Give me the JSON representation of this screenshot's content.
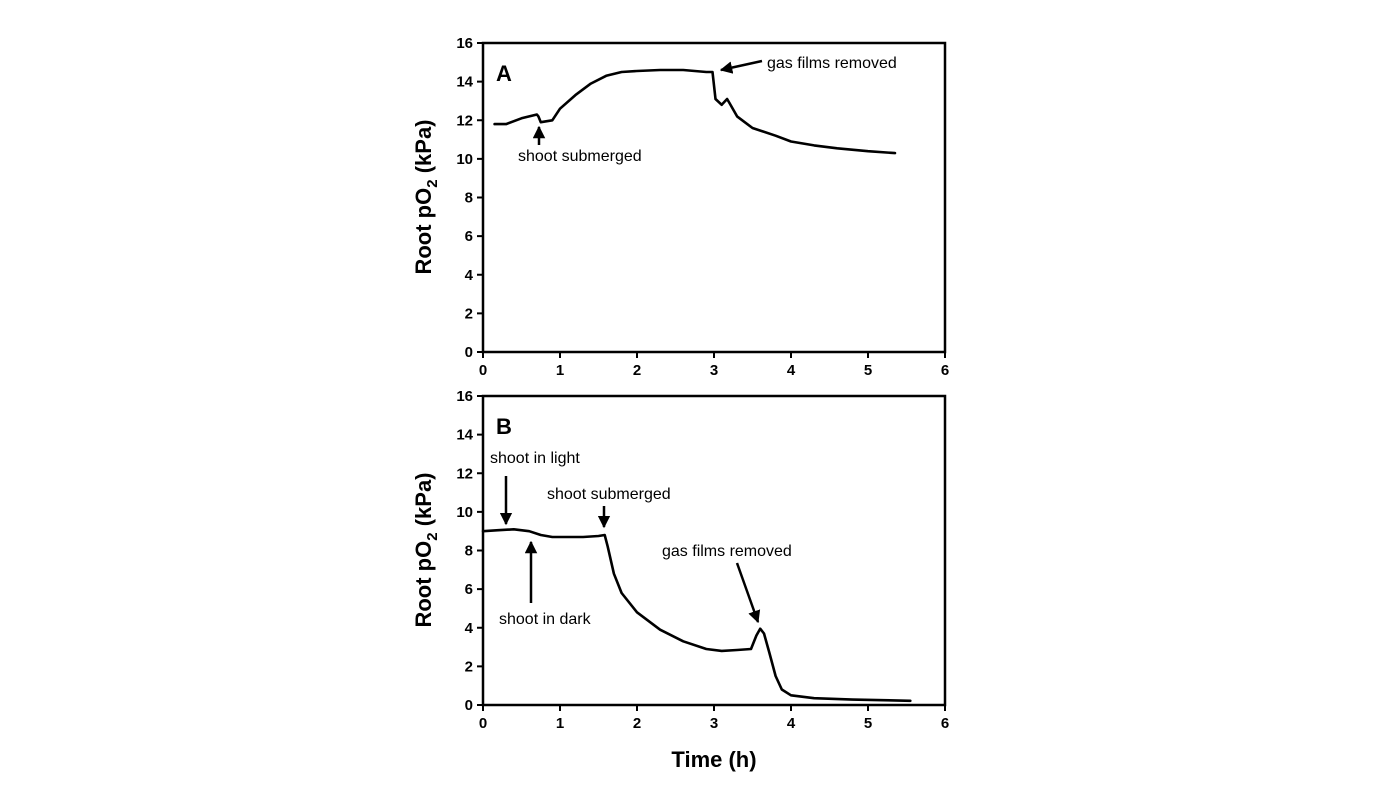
{
  "chart_data": [
    {
      "type": "line",
      "panel_label": "A",
      "xlabel": "",
      "ylabel": "Root pO",
      "ylabel_sub": "2",
      "ylabel_unit": " (kPa)",
      "xlim": [
        0,
        6
      ],
      "ylim": [
        0,
        16
      ],
      "xticks": [
        "0",
        "1",
        "2",
        "3",
        "4",
        "5",
        "6"
      ],
      "yticks": [
        "0",
        "2",
        "4",
        "6",
        "8",
        "10",
        "12",
        "14",
        "16"
      ],
      "grid": false,
      "series": [
        {
          "x": [
            0.15,
            0.3,
            0.5,
            0.7,
            0.72,
            0.75,
            0.9,
            1.0,
            1.2,
            1.4,
            1.6,
            1.8,
            2.0,
            2.3,
            2.6,
            2.9,
            2.98,
            3.02,
            3.1,
            3.17,
            3.2,
            3.3,
            3.5,
            3.8,
            4.0,
            4.3,
            4.6,
            5.0,
            5.35
          ],
          "y": [
            11.8,
            11.8,
            12.1,
            12.3,
            12.2,
            11.9,
            12.0,
            12.6,
            13.3,
            13.9,
            14.3,
            14.5,
            14.55,
            14.6,
            14.6,
            14.5,
            14.5,
            13.1,
            12.8,
            13.1,
            12.9,
            12.2,
            11.6,
            11.2,
            10.9,
            10.7,
            10.55,
            10.4,
            10.3
          ]
        }
      ],
      "annotations": [
        {
          "text": "shoot submerged",
          "x": 0.72,
          "y": 12.0,
          "direction": "up"
        },
        {
          "text": "gas films removed",
          "x": 3.0,
          "y": 14.6,
          "direction": "left"
        }
      ]
    },
    {
      "type": "line",
      "panel_label": "B",
      "xlabel": "Time (h)",
      "ylabel": "Root pO",
      "ylabel_sub": "2",
      "ylabel_unit": " (kPa)",
      "xlim": [
        0,
        6
      ],
      "ylim": [
        0,
        16
      ],
      "xticks": [
        "0",
        "1",
        "2",
        "3",
        "4",
        "5",
        "6"
      ],
      "yticks": [
        "0",
        "2",
        "4",
        "6",
        "8",
        "10",
        "12",
        "14",
        "16"
      ],
      "grid": false,
      "series": [
        {
          "x": [
            0.0,
            0.2,
            0.4,
            0.6,
            0.75,
            0.9,
            1.1,
            1.3,
            1.5,
            1.58,
            1.62,
            1.7,
            1.8,
            2.0,
            2.3,
            2.6,
            2.9,
            3.1,
            3.3,
            3.48,
            3.55,
            3.6,
            3.65,
            3.72,
            3.8,
            3.88,
            4.0,
            4.3,
            4.8,
            5.2,
            5.55
          ],
          "y": [
            9.0,
            9.05,
            9.1,
            9.0,
            8.8,
            8.7,
            8.7,
            8.7,
            8.75,
            8.8,
            8.2,
            6.8,
            5.8,
            4.8,
            3.9,
            3.3,
            2.9,
            2.8,
            2.85,
            2.9,
            3.6,
            3.95,
            3.7,
            2.7,
            1.5,
            0.8,
            0.5,
            0.35,
            0.28,
            0.25,
            0.22
          ]
        }
      ],
      "annotations": [
        {
          "text": "shoot in light",
          "x": 0.3,
          "y": 9.05,
          "direction": "down"
        },
        {
          "text": "shoot in dark",
          "x": 0.6,
          "y": 9.0,
          "direction": "up"
        },
        {
          "text": "shoot submerged",
          "x": 1.58,
          "y": 8.85,
          "direction": "down"
        },
        {
          "text": "gas films removed",
          "x": 3.58,
          "y": 4.05,
          "direction": "down"
        }
      ]
    }
  ]
}
